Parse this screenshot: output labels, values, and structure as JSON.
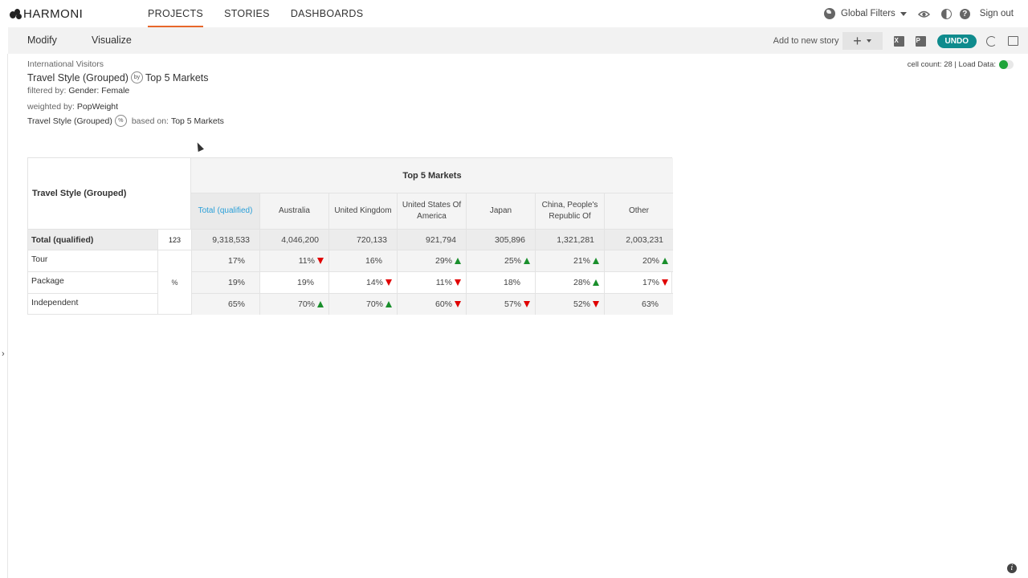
{
  "app": {
    "brand": "HARMONI"
  },
  "nav": {
    "links": [
      {
        "label": "PROJECTS",
        "active": true
      },
      {
        "label": "STORIES",
        "active": false
      },
      {
        "label": "DASHBOARDS",
        "active": false
      }
    ],
    "global_filters": "Global Filters",
    "sign_out": "Sign out"
  },
  "toolbar": {
    "modify": "Modify",
    "visualize": "Visualize",
    "add_to_story": "Add to new story",
    "undo": "UNDO"
  },
  "meta": {
    "dataset": "International Visitors",
    "title_row": "Travel Style (Grouped)",
    "title_op": "by",
    "title_col": "Top 5 Markets",
    "filtered_label": "filtered by:",
    "filtered_value": "Gender: Female",
    "weighted_label": "weighted by:",
    "weighted_value": "PopWeight",
    "based_row": "Travel Style (Grouped)",
    "based_op": "%",
    "based_label": "based on:",
    "based_value": "Top 5 Markets",
    "cell_count": "cell count: 28 | Load Data:"
  },
  "table": {
    "row_header": "Travel Style (Grouped)",
    "col_group": "Top 5 Markets",
    "columns": [
      "Total (qualified)",
      "Australia",
      "United Kingdom",
      "United States Of America",
      "Japan",
      "China, People's Republic Of",
      "Other"
    ],
    "total_row": {
      "label": "Total (qualified)",
      "stat": "123",
      "values": [
        "9,318,533",
        "4,046,200",
        "720,133",
        "921,794",
        "305,896",
        "1,321,281",
        "2,003,231"
      ]
    },
    "stat_pct": "%",
    "rows": [
      {
        "label": "Tour",
        "values": [
          "17%",
          "11%",
          "16%",
          "29%",
          "25%",
          "21%",
          "20%"
        ],
        "sig": [
          "",
          "down",
          "",
          "up",
          "up",
          "up",
          "up"
        ]
      },
      {
        "label": "Package",
        "values": [
          "19%",
          "19%",
          "14%",
          "11%",
          "18%",
          "28%",
          "17%"
        ],
        "sig": [
          "",
          "",
          "down",
          "down",
          "",
          "up",
          "down"
        ]
      },
      {
        "label": "Independent",
        "values": [
          "65%",
          "70%",
          "70%",
          "60%",
          "57%",
          "52%",
          "63%"
        ],
        "sig": [
          "",
          "up",
          "up",
          "down",
          "down",
          "down",
          ""
        ]
      }
    ]
  },
  "colors": {
    "accent": "#e8672a",
    "undo": "#0f8b8d",
    "link": "#2a9fd8",
    "sig_up": "#1a8f2c",
    "sig_down": "#e00000",
    "toggle_on": "#1fa33a"
  }
}
